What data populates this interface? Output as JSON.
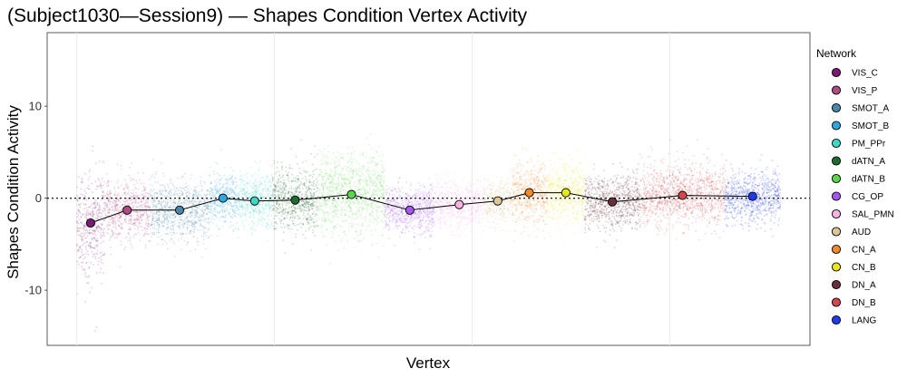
{
  "chart_data": {
    "type": "scatter",
    "title": "(Subject1030—Session9) — Shapes Condition Vertex Activity",
    "xlabel": "Vertex",
    "ylabel": "Shapes Condition Activity",
    "ylim": [
      -16,
      18
    ],
    "yticks": [
      -10,
      0,
      10
    ],
    "reference_line": 0,
    "grid": true,
    "legend": {
      "title": "Network",
      "placement": "right"
    },
    "series": [
      {
        "name": "VIS_C",
        "color": "#7B1A73",
        "x_range": [
          0,
          1400
        ],
        "mean": -2.7,
        "spread": 2.8
      },
      {
        "name": "VIS_P",
        "color": "#B04A84",
        "x_range": [
          1400,
          3700
        ],
        "mean": -1.3,
        "spread": 1.6
      },
      {
        "name": "SMOT_A",
        "color": "#4A86A6",
        "x_range": [
          3700,
          6700
        ],
        "mean": -1.3,
        "spread": 1.6
      },
      {
        "name": "SMOT_B",
        "color": "#2FA6E0",
        "x_range": [
          6700,
          8100
        ],
        "mean": 0.0,
        "spread": 1.4
      },
      {
        "name": "PM_PPr",
        "color": "#3ED6C4",
        "x_range": [
          8100,
          9900
        ],
        "mean": -0.3,
        "spread": 1.5
      },
      {
        "name": "dATN_A",
        "color": "#1E6B2E",
        "x_range": [
          9900,
          12200
        ],
        "mean": -0.2,
        "spread": 1.8
      },
      {
        "name": "dATN_B",
        "color": "#5BD64A",
        "x_range": [
          12200,
          15600
        ],
        "mean": 0.4,
        "spread": 2.2
      },
      {
        "name": "CG_OP",
        "color": "#A556F0",
        "x_range": [
          15600,
          18100
        ],
        "mean": -1.3,
        "spread": 1.3
      },
      {
        "name": "SAL_PMN",
        "color": "#F7B4E2",
        "x_range": [
          18100,
          20600
        ],
        "mean": -0.7,
        "spread": 1.3
      },
      {
        "name": "AUD",
        "color": "#DCC79A",
        "x_range": [
          20600,
          22000
        ],
        "mean": -0.3,
        "spread": 1.1
      },
      {
        "name": "CN_A",
        "color": "#F28A25",
        "x_range": [
          22000,
          23800
        ],
        "mean": 0.6,
        "spread": 1.7
      },
      {
        "name": "CN_B",
        "color": "#E6E81C",
        "x_range": [
          23800,
          25700
        ],
        "mean": 0.6,
        "spread": 1.6
      },
      {
        "name": "DN_A",
        "color": "#6A2E3C",
        "x_range": [
          25700,
          28500
        ],
        "mean": -0.4,
        "spread": 1.5
      },
      {
        "name": "DN_B",
        "color": "#D2474F",
        "x_range": [
          28500,
          32800
        ],
        "mean": 0.3,
        "spread": 1.6
      },
      {
        "name": "LANG",
        "color": "#1F3BF2",
        "x_range": [
          32800,
          35600
        ],
        "mean": 0.2,
        "spread": 1.4
      }
    ]
  }
}
